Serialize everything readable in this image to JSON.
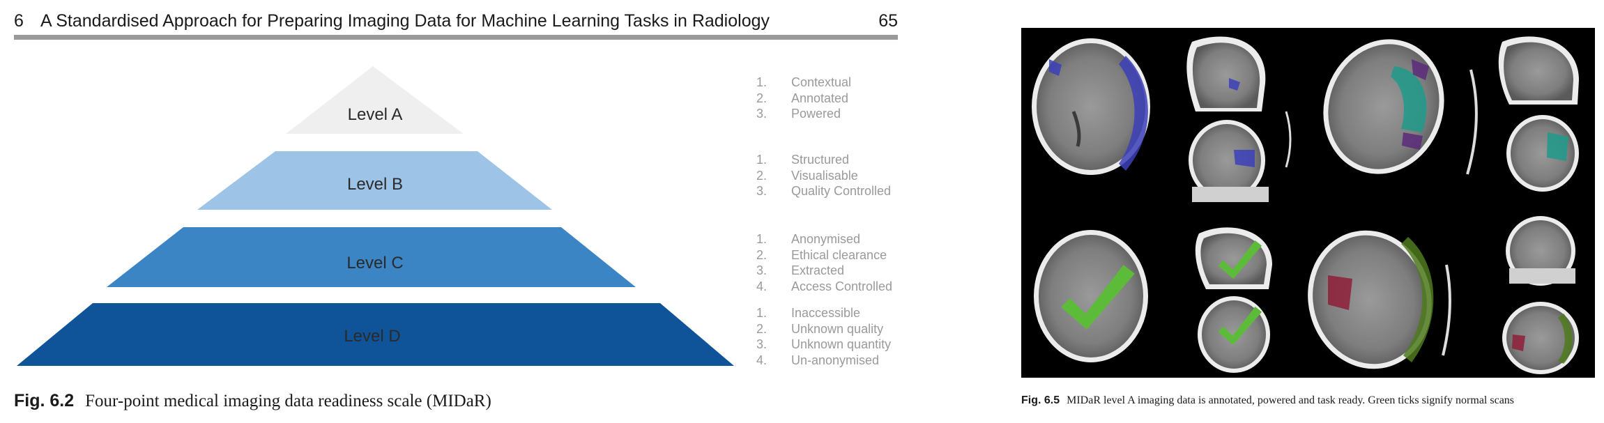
{
  "running_head": {
    "chapter": "6",
    "title": "A Standardised Approach for Preparing Imaging Data for Machine Learning Tasks in Radiology",
    "page_number": "65"
  },
  "pyramid": {
    "levels": [
      {
        "label": "Level A",
        "color": "#efefef"
      },
      {
        "label": "Level B",
        "color": "#9dc3e6"
      },
      {
        "label": "Level C",
        "color": "#3b85c4"
      },
      {
        "label": "Level D",
        "color": "#0f5499"
      }
    ]
  },
  "readiness_criteria": [
    {
      "level": "Level A",
      "items": [
        {
          "num": "1.",
          "text": "Contextual"
        },
        {
          "num": "2.",
          "text": "Annotated"
        },
        {
          "num": "3.",
          "text": "Powered"
        }
      ]
    },
    {
      "level": "Level B",
      "items": [
        {
          "num": "1.",
          "text": "Structured"
        },
        {
          "num": "2.",
          "text": "Visualisable"
        },
        {
          "num": "3.",
          "text": "Quality Controlled"
        }
      ]
    },
    {
      "level": "Level C",
      "items": [
        {
          "num": "1.",
          "text": "Anonymised"
        },
        {
          "num": "2.",
          "text": "Ethical clearance"
        },
        {
          "num": "3.",
          "text": "Extracted"
        },
        {
          "num": "4.",
          "text": "Access Controlled"
        }
      ]
    },
    {
      "level": "Level D",
      "items": [
        {
          "num": "1.",
          "text": "Inaccessible"
        },
        {
          "num": "2.",
          "text": "Unknown quality"
        },
        {
          "num": "3.",
          "text": "Unknown quantity"
        },
        {
          "num": "4.",
          "text": "Un-anonymised"
        }
      ]
    }
  ],
  "figure_left_caption": {
    "label": "Fig. 6.2",
    "text": "Four-point medical imaging data readiness scale (MIDaR)"
  },
  "figure_right_caption": {
    "label": "Fig. 6.5",
    "text": "MIDaR level A imaging data is annotated, powered and task ready. Green ticks signify normal scans"
  },
  "scan_colors": {
    "annotation_blue": "#3b3fb8",
    "annotation_green": "#4f7a1f",
    "annotation_red": "#8e1f3a",
    "annotation_teal": "#1f9a8a",
    "annotation_purple": "#5a2a7a",
    "tick_green": "#5dbb3a"
  }
}
